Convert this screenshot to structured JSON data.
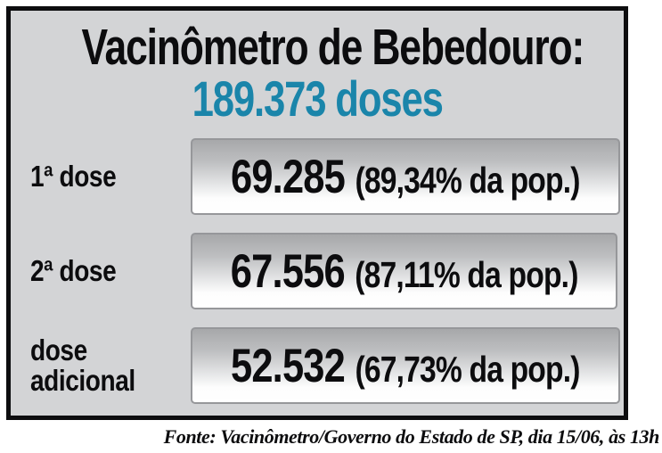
{
  "panel": {
    "title": "Vacinômetro de Bebedouro:",
    "subtitle": "189.373 doses",
    "rows": [
      {
        "label": "1ª dose",
        "value": "69.285",
        "percent": "(89,34% da pop.)"
      },
      {
        "label": "2ª dose",
        "value": "67.556",
        "percent": "(87,11% da pop.)"
      },
      {
        "label": "dose adicional",
        "value": "52.532",
        "percent": "(67,73% da pop.)"
      }
    ]
  },
  "footer": {
    "source": "Fonte: Vacinômetro/Governo do Estado de SP, dia 15/06, às 13h"
  },
  "colors": {
    "accent_blue": "#1a85aa",
    "panel_background": "#d3d4d6",
    "panel_border": "#0d0d0f",
    "box_border": "#96979a",
    "box_gradient_top": "#a7a8aa",
    "box_gradient_bottom": "#ffffff",
    "text_black": "#0c0c0e"
  },
  "chart_data": {
    "type": "table",
    "title": "Vacinômetro de Bebedouro: 189.373 doses",
    "total_doses": 189373,
    "categories": [
      "1ª dose",
      "2ª dose",
      "dose adicional"
    ],
    "values": [
      69285,
      67556,
      52532
    ],
    "percent_of_population": [
      89.34,
      87.11,
      67.73
    ],
    "source": "Fonte: Vacinômetro/Governo do Estado de SP, dia 15/06, às 13h"
  }
}
